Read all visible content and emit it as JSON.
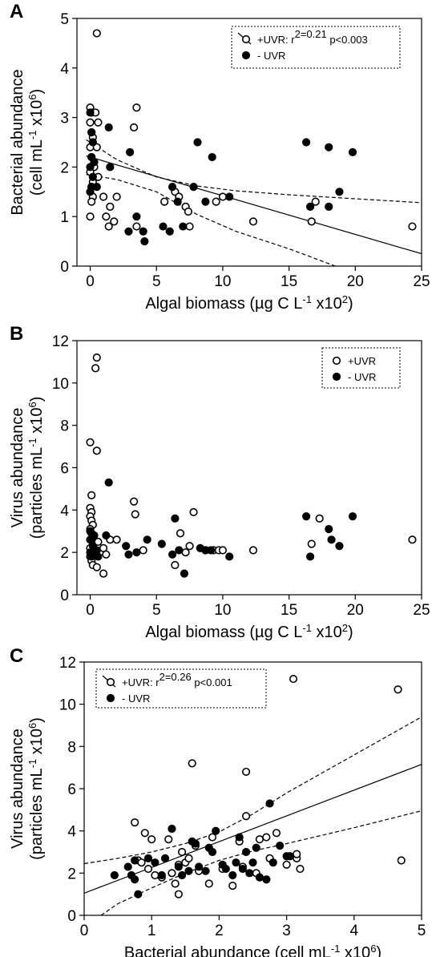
{
  "chart_data": [
    {
      "panel": "A",
      "type": "scatter",
      "xlabel": "Algal biomass (µg C L-1 x102)",
      "ylabel": "Bacterial abundance (cell mL-1 x106)",
      "xlim": [
        -1,
        25
      ],
      "ylim": [
        0,
        5
      ],
      "xticks": [
        0,
        5,
        10,
        15,
        20,
        25
      ],
      "yticks": [
        0,
        1,
        2,
        3,
        4,
        5
      ],
      "legend_position": "top-right",
      "legend": [
        {
          "marker": "open-circle-line",
          "label": "+UVR: r2=0.21 p<0.003"
        },
        {
          "marker": "filled-circle",
          "label": "- UVR"
        }
      ],
      "series": [
        {
          "name": "+UVR",
          "marker": "open",
          "points": [
            [
              0.0,
              3.2
            ],
            [
              0.1,
              3.1
            ],
            [
              0.0,
              2.9
            ],
            [
              0.1,
              2.7
            ],
            [
              0.2,
              2.6
            ],
            [
              0.0,
              2.4
            ],
            [
              0.1,
              2.2
            ],
            [
              0.3,
              2.0
            ],
            [
              0.0,
              1.9
            ],
            [
              0.2,
              1.7
            ],
            [
              0.1,
              1.6
            ],
            [
              0.0,
              1.5
            ],
            [
              0.2,
              1.4
            ],
            [
              0.1,
              1.3
            ],
            [
              0.0,
              1.0
            ],
            [
              0.4,
              3.1
            ],
            [
              0.5,
              2.4
            ],
            [
              0.6,
              1.8
            ],
            [
              0.5,
              4.7
            ],
            [
              0.6,
              2.9
            ],
            [
              1.0,
              1.4
            ],
            [
              1.2,
              1.0
            ],
            [
              1.4,
              0.8
            ],
            [
              1.5,
              1.2
            ],
            [
              1.8,
              0.9
            ],
            [
              2.0,
              1.4
            ],
            [
              3.3,
              2.8
            ],
            [
              3.5,
              3.2
            ],
            [
              3.5,
              0.8
            ],
            [
              5.6,
              1.3
            ],
            [
              6.4,
              1.5
            ],
            [
              6.7,
              1.4
            ],
            [
              7.2,
              1.2
            ],
            [
              7.4,
              1.1
            ],
            [
              7.5,
              0.8
            ],
            [
              9.5,
              1.3
            ],
            [
              10.0,
              1.4
            ],
            [
              12.3,
              0.9
            ],
            [
              16.7,
              0.9
            ],
            [
              17.0,
              1.3
            ],
            [
              24.3,
              0.8
            ]
          ]
        },
        {
          "name": "- UVR",
          "marker": "filled",
          "points": [
            [
              0.0,
              3.1
            ],
            [
              0.1,
              2.7
            ],
            [
              0.2,
              2.5
            ],
            [
              0.1,
              2.2
            ],
            [
              0.0,
              2.0
            ],
            [
              0.2,
              1.8
            ],
            [
              0.1,
              1.6
            ],
            [
              0.0,
              1.5
            ],
            [
              0.3,
              2.1
            ],
            [
              0.5,
              1.6
            ],
            [
              1.4,
              2.8
            ],
            [
              1.5,
              2.0
            ],
            [
              3.0,
              2.3
            ],
            [
              2.9,
              0.7
            ],
            [
              3.5,
              1.0
            ],
            [
              4.0,
              0.7
            ],
            [
              4.1,
              0.5
            ],
            [
              5.5,
              0.8
            ],
            [
              6.0,
              0.7
            ],
            [
              6.2,
              1.6
            ],
            [
              6.6,
              1.3
            ],
            [
              7.0,
              0.8
            ],
            [
              7.8,
              1.6
            ],
            [
              8.1,
              2.5
            ],
            [
              8.7,
              1.3
            ],
            [
              9.2,
              2.2
            ],
            [
              10.5,
              1.4
            ],
            [
              16.3,
              2.5
            ],
            [
              16.6,
              1.2
            ],
            [
              18.0,
              2.4
            ],
            [
              18.0,
              1.2
            ],
            [
              18.8,
              1.5
            ],
            [
              19.8,
              2.3
            ]
          ]
        }
      ],
      "fit": {
        "series": "+UVR",
        "intercept": 2.2,
        "slope": -0.078,
        "x_range": [
          -0.3,
          25
        ]
      },
      "ci_upper": [
        [
          -0.3,
          2.55
        ],
        [
          2,
          2.15
        ],
        [
          5,
          1.8
        ],
        [
          8,
          1.62
        ],
        [
          11,
          1.52
        ],
        [
          15,
          1.44
        ],
        [
          20,
          1.36
        ],
        [
          25,
          1.28
        ]
      ],
      "ci_lower": [
        [
          -0.3,
          1.85
        ],
        [
          2,
          1.75
        ],
        [
          5,
          1.5
        ],
        [
          8,
          1.05
        ],
        [
          11,
          0.7
        ],
        [
          15,
          0.35
        ],
        [
          18.5,
          0.0
        ]
      ]
    },
    {
      "panel": "B",
      "type": "scatter",
      "xlabel": "Algal biomass (µg C L-1 x102)",
      "ylabel": "Virus abundance (particles mL-1 x106)",
      "xlim": [
        -1,
        25
      ],
      "ylim": [
        0,
        12
      ],
      "xticks": [
        0,
        5,
        10,
        15,
        20,
        25
      ],
      "yticks": [
        0,
        2,
        4,
        6,
        8,
        10,
        12
      ],
      "legend_position": "top-right",
      "legend": [
        {
          "marker": "open-circle",
          "label": "+UVR"
        },
        {
          "marker": "filled-circle",
          "label": "- UVR"
        }
      ],
      "series": [
        {
          "name": "+UVR",
          "marker": "open",
          "points": [
            [
              0.0,
              7.2
            ],
            [
              0.1,
              4.7
            ],
            [
              0.0,
              4.1
            ],
            [
              0.1,
              3.9
            ],
            [
              0.0,
              3.7
            ],
            [
              0.1,
              3.5
            ],
            [
              0.2,
              3.3
            ],
            [
              0.0,
              3.1
            ],
            [
              0.1,
              2.9
            ],
            [
              0.0,
              2.6
            ],
            [
              0.2,
              2.4
            ],
            [
              0.0,
              2.2
            ],
            [
              0.1,
              2.0
            ],
            [
              0.0,
              1.8
            ],
            [
              0.1,
              1.6
            ],
            [
              0.2,
              1.4
            ],
            [
              0.5,
              11.2
            ],
            [
              0.4,
              10.7
            ],
            [
              0.5,
              6.8
            ],
            [
              0.6,
              2.5
            ],
            [
              0.5,
              1.3
            ],
            [
              1.0,
              2.2
            ],
            [
              1.2,
              1.9
            ],
            [
              1.5,
              2.6
            ],
            [
              2.0,
              2.6
            ],
            [
              1.0,
              1.0
            ],
            [
              3.3,
              4.4
            ],
            [
              3.4,
              3.8
            ],
            [
              4.0,
              2.1
            ],
            [
              6.4,
              1.4
            ],
            [
              6.8,
              2.9
            ],
            [
              7.2,
              2.0
            ],
            [
              7.5,
              2.3
            ],
            [
              7.8,
              3.9
            ],
            [
              8.7,
              2.1
            ],
            [
              9.3,
              2.1
            ],
            [
              9.7,
              2.1
            ],
            [
              10.0,
              2.1
            ],
            [
              12.3,
              2.1
            ],
            [
              16.7,
              2.4
            ],
            [
              17.3,
              3.6
            ],
            [
              24.3,
              2.6
            ]
          ]
        },
        {
          "name": "- UVR",
          "marker": "filled",
          "points": [
            [
              0.0,
              3.0
            ],
            [
              0.1,
              2.6
            ],
            [
              0.2,
              2.3
            ],
            [
              0.0,
              2.0
            ],
            [
              0.1,
              1.8
            ],
            [
              0.3,
              2.8
            ],
            [
              0.5,
              2.1
            ],
            [
              0.6,
              1.8
            ],
            [
              1.4,
              5.3
            ],
            [
              1.2,
              2.8
            ],
            [
              2.7,
              2.3
            ],
            [
              2.9,
              1.9
            ],
            [
              3.5,
              2.0
            ],
            [
              4.3,
              2.6
            ],
            [
              5.4,
              2.4
            ],
            [
              6.2,
              1.9
            ],
            [
              6.4,
              3.6
            ],
            [
              6.7,
              2.1
            ],
            [
              7.1,
              1.0
            ],
            [
              8.3,
              2.2
            ],
            [
              8.7,
              2.1
            ],
            [
              9.1,
              2.1
            ],
            [
              10.5,
              1.8
            ],
            [
              16.3,
              3.7
            ],
            [
              16.6,
              1.8
            ],
            [
              18.0,
              3.1
            ],
            [
              18.2,
              2.6
            ],
            [
              18.8,
              2.3
            ],
            [
              19.8,
              3.7
            ]
          ]
        }
      ]
    },
    {
      "panel": "C",
      "type": "scatter",
      "xlabel": "Bacterial abundance (cell mL-1 x106)",
      "ylabel": "Virus abundance (particles mL-1 x106)",
      "xlim": [
        0,
        5
      ],
      "ylim": [
        0,
        12
      ],
      "xticks": [
        0,
        1,
        2,
        3,
        4,
        5
      ],
      "yticks": [
        0,
        2,
        4,
        6,
        8,
        10,
        12
      ],
      "legend_position": "top-left",
      "legend": [
        {
          "marker": "open-circle-line",
          "label": "+UVR: r2=0.26 p<0.001"
        },
        {
          "marker": "filled-circle",
          "label": "- UVR"
        }
      ],
      "series": [
        {
          "name": "+UVR",
          "marker": "open",
          "points": [
            [
              0.75,
              4.4
            ],
            [
              0.8,
              2.6
            ],
            [
              0.85,
              2.5
            ],
            [
              0.9,
              3.9
            ],
            [
              0.95,
              2.2
            ],
            [
              1.0,
              3.6
            ],
            [
              1.05,
              1.9
            ],
            [
              1.15,
              1.8
            ],
            [
              1.25,
              3.6
            ],
            [
              1.3,
              2.0
            ],
            [
              1.35,
              1.5
            ],
            [
              1.4,
              2.4
            ],
            [
              1.4,
              1.0
            ],
            [
              1.45,
              3.0
            ],
            [
              1.5,
              2.5
            ],
            [
              1.55,
              2.7
            ],
            [
              1.6,
              7.2
            ],
            [
              1.65,
              3.3
            ],
            [
              1.7,
              2.1
            ],
            [
              1.85,
              1.5
            ],
            [
              1.9,
              3.7
            ],
            [
              2.05,
              2.2
            ],
            [
              2.2,
              1.4
            ],
            [
              2.3,
              3.5
            ],
            [
              2.35,
              2.3
            ],
            [
              2.4,
              6.8
            ],
            [
              2.4,
              4.7
            ],
            [
              2.55,
              2.0
            ],
            [
              2.6,
              3.6
            ],
            [
              2.7,
              3.7
            ],
            [
              2.75,
              2.7
            ],
            [
              2.85,
              3.9
            ],
            [
              3.0,
              2.4
            ],
            [
              3.1,
              11.2
            ],
            [
              3.15,
              2.7
            ],
            [
              3.15,
              2.9
            ],
            [
              3.2,
              2.2
            ],
            [
              4.65,
              10.7
            ],
            [
              4.7,
              2.6
            ]
          ]
        },
        {
          "name": "- UVR",
          "marker": "filled",
          "points": [
            [
              0.45,
              1.9
            ],
            [
              0.65,
              2.3
            ],
            [
              0.7,
              1.9
            ],
            [
              0.75,
              1.7
            ],
            [
              0.75,
              2.6
            ],
            [
              0.8,
              1.0
            ],
            [
              0.95,
              2.7
            ],
            [
              1.05,
              2.5
            ],
            [
              1.15,
              1.9
            ],
            [
              1.2,
              2.7
            ],
            [
              1.3,
              4.1
            ],
            [
              1.4,
              2.3
            ],
            [
              1.45,
              1.9
            ],
            [
              1.55,
              2.1
            ],
            [
              1.6,
              3.5
            ],
            [
              1.65,
              3.4
            ],
            [
              1.7,
              2.3
            ],
            [
              1.8,
              2.1
            ],
            [
              1.85,
              3.2
            ],
            [
              1.9,
              3.0
            ],
            [
              1.95,
              4.0
            ],
            [
              2.05,
              2.4
            ],
            [
              2.1,
              2.2
            ],
            [
              2.2,
              1.9
            ],
            [
              2.25,
              2.5
            ],
            [
              2.3,
              3.7
            ],
            [
              2.35,
              2.2
            ],
            [
              2.4,
              3.0
            ],
            [
              2.45,
              2.0
            ],
            [
              2.5,
              2.5
            ],
            [
              2.55,
              3.2
            ],
            [
              2.6,
              1.8
            ],
            [
              2.7,
              1.7
            ],
            [
              2.75,
              5.3
            ],
            [
              2.8,
              2.5
            ],
            [
              2.9,
              3.3
            ],
            [
              3.0,
              2.8
            ],
            [
              3.05,
              2.8
            ]
          ]
        }
      ],
      "fit": {
        "series": "+UVR",
        "intercept": 1.05,
        "slope": 1.22,
        "x_range": [
          0,
          5
        ]
      },
      "ci_upper": [
        [
          0,
          2.45
        ],
        [
          0.5,
          2.7
        ],
        [
          1,
          3.0
        ],
        [
          1.5,
          3.4
        ],
        [
          2,
          3.95
        ],
        [
          2.5,
          4.8
        ],
        [
          3,
          5.8
        ],
        [
          4,
          7.6
        ],
        [
          5,
          9.4
        ]
      ],
      "ci_lower": [
        [
          0.25,
          0.0
        ],
        [
          0.5,
          0.55
        ],
        [
          1,
          1.3
        ],
        [
          1.5,
          2.0
        ],
        [
          2,
          2.6
        ],
        [
          2.5,
          3.05
        ],
        [
          3,
          3.4
        ],
        [
          4,
          4.15
        ],
        [
          5,
          4.95
        ]
      ]
    }
  ]
}
